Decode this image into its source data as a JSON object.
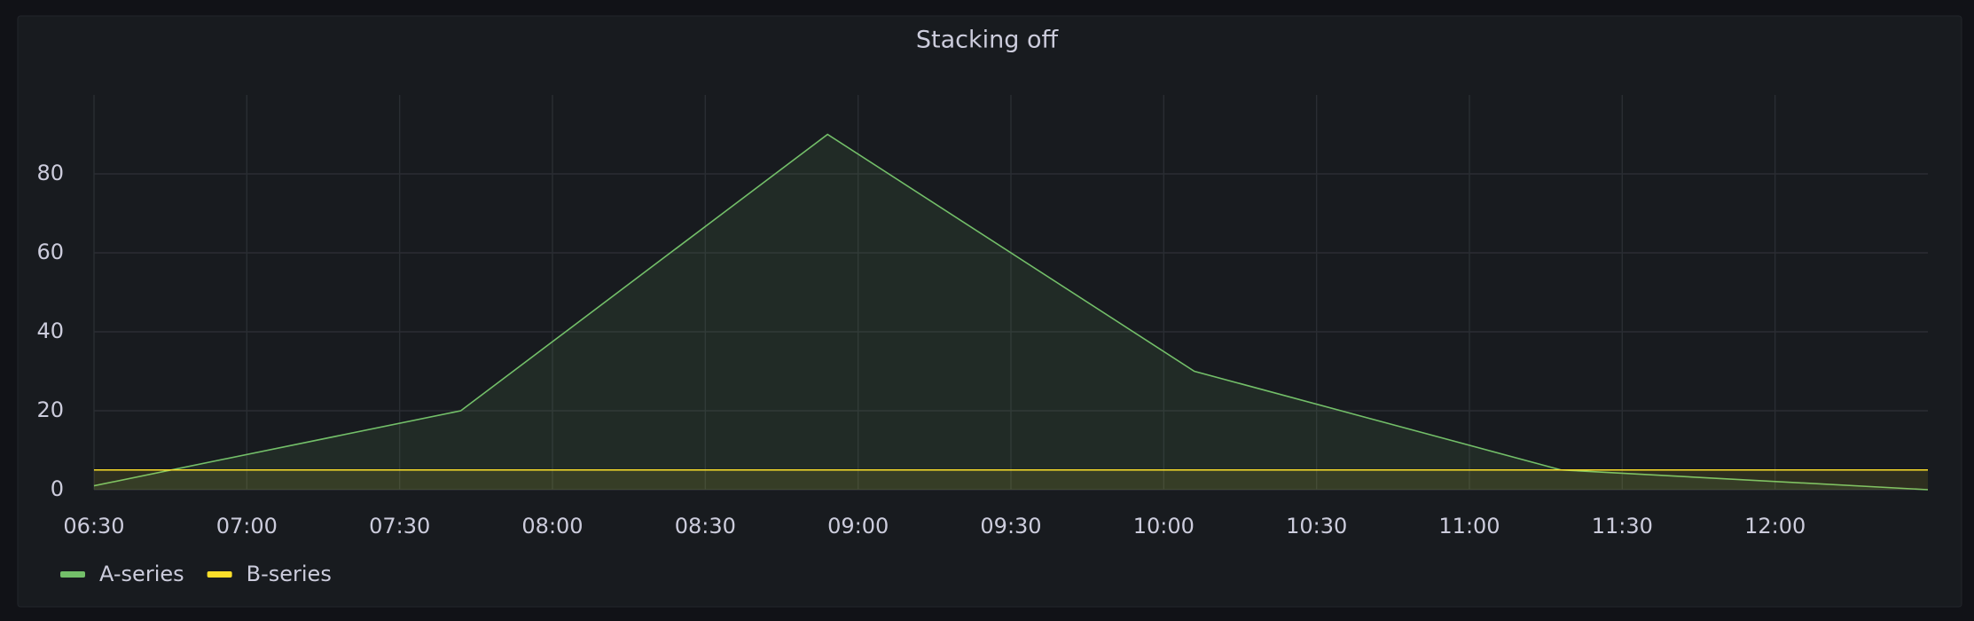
{
  "chart_data": {
    "type": "line",
    "title": "Stacking off",
    "x": [
      390,
      462,
      534,
      606,
      678,
      750
    ],
    "series": [
      {
        "name": "A-series",
        "color": "#73bf69",
        "values": [
          1,
          20,
          90,
          30,
          5,
          0
        ]
      },
      {
        "name": "B-series",
        "color": "#fade2a",
        "values": [
          5,
          5,
          5,
          5,
          5,
          5
        ]
      }
    ],
    "xlim": [
      390,
      750
    ],
    "xticks": [
      {
        "value": 390,
        "label": "06:30"
      },
      {
        "value": 420,
        "label": "07:00"
      },
      {
        "value": 450,
        "label": "07:30"
      },
      {
        "value": 480,
        "label": "08:00"
      },
      {
        "value": 510,
        "label": "08:30"
      },
      {
        "value": 540,
        "label": "09:00"
      },
      {
        "value": 570,
        "label": "09:30"
      },
      {
        "value": 600,
        "label": "10:00"
      },
      {
        "value": 630,
        "label": "10:30"
      },
      {
        "value": 660,
        "label": "11:00"
      },
      {
        "value": 690,
        "label": "11:30"
      },
      {
        "value": 720,
        "label": "12:00"
      }
    ],
    "ylim": [
      0,
      100
    ],
    "yticks": [
      0,
      20,
      40,
      60,
      80
    ],
    "grid": true,
    "legend": "bottom-left"
  }
}
